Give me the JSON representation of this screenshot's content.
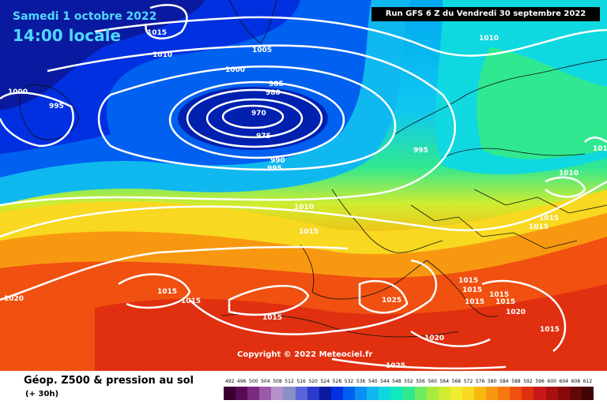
{
  "header": {
    "date": "Samedi 1 octobre 2022",
    "time": "14:00 locale",
    "run": "Run GFS 6 Z du Vendredi 30 septembre 2022"
  },
  "copyright": "Copyright © 2022 Meteociel.fr",
  "footer": {
    "title": "Géop. Z500 & pression au sol",
    "subtitle": "(+ 30h)"
  },
  "legend": {
    "labels": [
      "492",
      "496",
      "500",
      "504",
      "508",
      "512",
      "516",
      "520",
      "524",
      "528",
      "532",
      "536",
      "540",
      "544",
      "548",
      "552",
      "556",
      "560",
      "564",
      "568",
      "572",
      "576",
      "580",
      "584",
      "588",
      "592",
      "596",
      "600",
      "604",
      "608",
      "612"
    ],
    "colors": [
      "#3a0030",
      "#5a0a55",
      "#7a2a80",
      "#9a5aa8",
      "#b890c8",
      "#8a8fc8",
      "#5b64d8",
      "#2a3acc",
      "#0a1aa0",
      "#0030e0",
      "#0060f0",
      "#0a90f5",
      "#10b8f0",
      "#10d8e0",
      "#10e8c0",
      "#30e890",
      "#70ec60",
      "#a8ec40",
      "#d0ec30",
      "#f0ec30",
      "#f8d820",
      "#f8b810",
      "#f89810",
      "#f87810",
      "#f05010",
      "#e03010",
      "#c81818",
      "#a81010",
      "#880808",
      "#600808",
      "#400404"
    ]
  },
  "isobars": [
    "1015",
    "1010",
    "1005",
    "1000",
    "1000",
    "995",
    "985",
    "980",
    "970",
    "975",
    "990",
    "995",
    "1010",
    "1015",
    "995",
    "1010",
    "1015",
    "1015",
    "1020",
    "1015",
    "1020",
    "1025",
    "1025",
    "1015",
    "1015",
    "1015",
    "1015",
    "1015",
    "1020",
    "1015",
    "1015",
    "1015",
    "1010",
    "1010"
  ]
}
